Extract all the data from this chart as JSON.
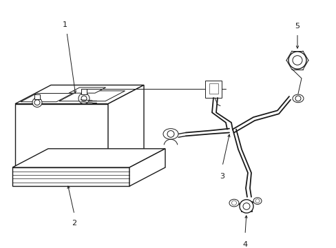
{
  "background_color": "#ffffff",
  "line_color": "#1a1a1a",
  "lw": 1.0,
  "tlw": 0.7,
  "label_fontsize": 8,
  "figsize": [
    4.89,
    3.6
  ],
  "dpi": 100
}
